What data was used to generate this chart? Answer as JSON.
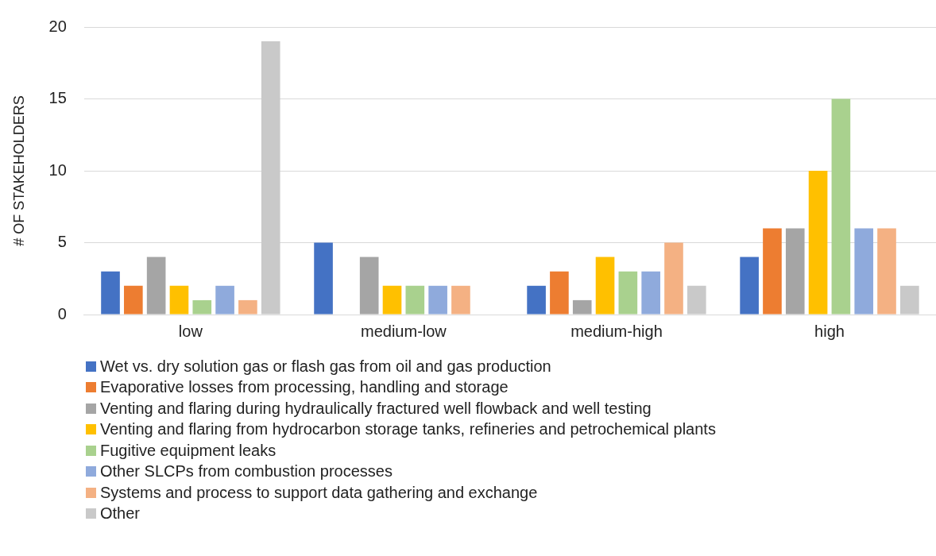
{
  "chart_data": {
    "type": "bar",
    "ylabel": "# OF STAKEHOLDERS",
    "categories": [
      "low",
      "medium-low",
      "medium-high",
      "high"
    ],
    "series": [
      {
        "name": "Wet vs. dry solution gas or flash gas from oil and gas production",
        "color": "#4472c4",
        "values": [
          3,
          5,
          2,
          4
        ]
      },
      {
        "name": "Evaporative losses from processing, handling and storage",
        "color": "#ed7d31",
        "values": [
          2,
          0,
          3,
          6
        ]
      },
      {
        "name": "Venting and flaring during hydraulically fractured well flowback and well testing",
        "color": "#a5a5a5",
        "values": [
          4,
          4,
          1,
          6
        ]
      },
      {
        "name": "Venting and flaring from hydrocarbon storage tanks, refineries and petrochemical plants",
        "color": "#ffc000",
        "values": [
          2,
          2,
          4,
          10
        ]
      },
      {
        "name": "Fugitive equipment leaks",
        "color": "#a9d18e",
        "values": [
          1,
          2,
          3,
          15
        ]
      },
      {
        "name": "Other SLCPs from combustion processes",
        "color": "#8faadc",
        "values": [
          2,
          2,
          3,
          6
        ]
      },
      {
        "name": "Systems and process to support data gathering and exchange",
        "color": "#f4b183",
        "values": [
          1,
          2,
          5,
          6
        ]
      },
      {
        "name": "Other",
        "color": "#c9c9c9",
        "values": [
          19,
          0,
          2,
          2
        ]
      }
    ],
    "ylim": [
      0,
      20
    ],
    "yticks": [
      0,
      5,
      10,
      15,
      20
    ],
    "grid": "y",
    "legend": "bottom"
  }
}
